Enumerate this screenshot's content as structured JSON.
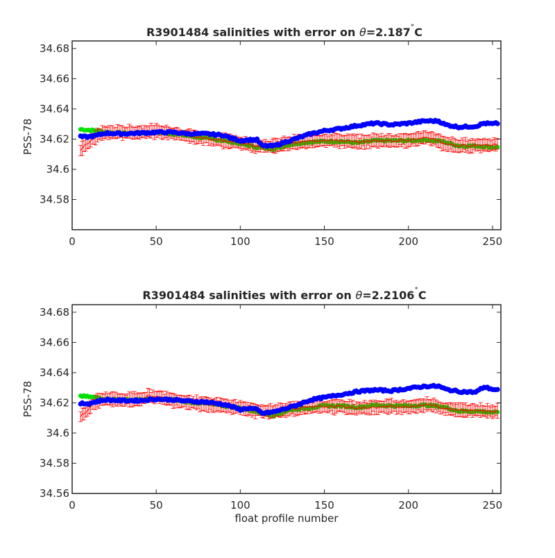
{
  "chart_data": [
    {
      "type": "scatter",
      "title": "R3901484 salinities with error on θ=2.187˚C",
      "title_parts": {
        "prefix": "R3901484 salinities with error on ",
        "symbol": "θ",
        "suffix": "=2.187",
        "degree": "˚",
        "unit": "C"
      },
      "xlabel": "",
      "ylabel": "PSS-78",
      "xlim": [
        0,
        255
      ],
      "ylim": [
        34.56,
        34.685
      ],
      "xticks": [
        0,
        50,
        100,
        150,
        200,
        250
      ],
      "yticks": [
        34.58,
        34.6,
        34.62,
        34.64,
        34.66,
        34.68
      ],
      "ytick_labels": [
        "34.58",
        "34.6",
        "34.62",
        "34.64",
        "34.66",
        "34.68"
      ],
      "grid": false,
      "knots": {
        "blue": [
          [
            5,
            34.6215
          ],
          [
            10,
            34.6215
          ],
          [
            15,
            34.6225
          ],
          [
            20,
            34.624
          ],
          [
            30,
            34.6235
          ],
          [
            40,
            34.624
          ],
          [
            50,
            34.6245
          ],
          [
            60,
            34.6245
          ],
          [
            70,
            34.6235
          ],
          [
            80,
            34.6235
          ],
          [
            90,
            34.6225
          ],
          [
            95,
            34.6205
          ],
          [
            100,
            34.619
          ],
          [
            105,
            34.6195
          ],
          [
            110,
            34.6195
          ],
          [
            113,
            34.6155
          ],
          [
            120,
            34.6155
          ],
          [
            128,
            34.6185
          ],
          [
            135,
            34.621
          ],
          [
            142,
            34.6235
          ],
          [
            150,
            34.6255
          ],
          [
            160,
            34.627
          ],
          [
            170,
            34.629
          ],
          [
            180,
            34.6305
          ],
          [
            190,
            34.6295
          ],
          [
            200,
            34.6305
          ],
          [
            210,
            34.632
          ],
          [
            218,
            34.632
          ],
          [
            222,
            34.6295
          ],
          [
            230,
            34.628
          ],
          [
            240,
            34.6285
          ],
          [
            245,
            34.6305
          ],
          [
            250,
            34.63
          ],
          [
            253,
            34.6305
          ]
        ],
        "red": [
          [
            5,
            34.6125
          ],
          [
            8,
            34.616
          ],
          [
            12,
            34.6195
          ],
          [
            15,
            34.6225
          ],
          [
            20,
            34.6245
          ],
          [
            30,
            34.6245
          ],
          [
            40,
            34.6245
          ],
          [
            45,
            34.6255
          ],
          [
            50,
            34.625
          ],
          [
            60,
            34.624
          ],
          [
            70,
            34.622
          ],
          [
            80,
            34.6205
          ],
          [
            90,
            34.619
          ],
          [
            100,
            34.6175
          ],
          [
            110,
            34.6155
          ],
          [
            120,
            34.6155
          ],
          [
            130,
            34.6175
          ],
          [
            140,
            34.6185
          ],
          [
            150,
            34.6195
          ],
          [
            160,
            34.619
          ],
          [
            170,
            34.618
          ],
          [
            180,
            34.619
          ],
          [
            190,
            34.619
          ],
          [
            200,
            34.6195
          ],
          [
            210,
            34.6205
          ],
          [
            215,
            34.6205
          ],
          [
            220,
            34.6175
          ],
          [
            230,
            34.6155
          ],
          [
            240,
            34.616
          ],
          [
            253,
            34.6165
          ]
        ],
        "green": [
          [
            5,
            34.6265
          ],
          [
            10,
            34.626
          ],
          [
            15,
            34.6255
          ],
          [
            20,
            34.6245
          ],
          [
            30,
            34.624
          ],
          [
            40,
            34.624
          ],
          [
            50,
            34.6245
          ],
          [
            60,
            34.6235
          ],
          [
            70,
            34.622
          ],
          [
            80,
            34.6205
          ],
          [
            90,
            34.619
          ],
          [
            100,
            34.617
          ],
          [
            110,
            34.6145
          ],
          [
            120,
            34.6135
          ],
          [
            130,
            34.6165
          ],
          [
            140,
            34.618
          ],
          [
            150,
            34.6185
          ],
          [
            160,
            34.6185
          ],
          [
            170,
            34.6175
          ],
          [
            180,
            34.619
          ],
          [
            190,
            34.619
          ],
          [
            200,
            34.619
          ],
          [
            210,
            34.6195
          ],
          [
            220,
            34.6185
          ],
          [
            230,
            34.6155
          ],
          [
            240,
            34.6155
          ],
          [
            253,
            34.6145
          ]
        ]
      },
      "error_halfwidth": 0.004,
      "series": [
        {
          "key": "blue",
          "color": "#0000ff",
          "kind": "markers"
        },
        {
          "key": "red",
          "color": "#ff0000",
          "kind": "errorbars"
        },
        {
          "key": "green",
          "color": "#00e000",
          "kind": "markers"
        }
      ]
    },
    {
      "type": "scatter",
      "title": "R3901484 salinities with error on θ=2.2106˚C",
      "title_parts": {
        "prefix": "R3901484 salinities with error on ",
        "symbol": "θ",
        "suffix": "=2.2106",
        "degree": "˚",
        "unit": "C"
      },
      "xlabel": "float profile number",
      "ylabel": "PSS-78",
      "xlim": [
        0,
        255
      ],
      "ylim": [
        34.56,
        34.685
      ],
      "xticks": [
        0,
        50,
        100,
        150,
        200,
        250
      ],
      "yticks": [
        34.56,
        34.58,
        34.6,
        34.62,
        34.64,
        34.66,
        34.68
      ],
      "ytick_labels": [
        "34.56",
        "34.58",
        "34.6",
        "34.62",
        "34.64",
        "34.66",
        "34.68"
      ],
      "grid": false,
      "knots": {
        "blue": [
          [
            5,
            34.6195
          ],
          [
            10,
            34.6195
          ],
          [
            15,
            34.621
          ],
          [
            20,
            34.622
          ],
          [
            30,
            34.6215
          ],
          [
            40,
            34.6215
          ],
          [
            50,
            34.6225
          ],
          [
            60,
            34.622
          ],
          [
            70,
            34.621
          ],
          [
            80,
            34.6205
          ],
          [
            90,
            34.619
          ],
          [
            95,
            34.6175
          ],
          [
            100,
            34.6155
          ],
          [
            105,
            34.6165
          ],
          [
            110,
            34.6155
          ],
          [
            113,
            34.613
          ],
          [
            120,
            34.614
          ],
          [
            128,
            34.6165
          ],
          [
            135,
            34.619
          ],
          [
            142,
            34.622
          ],
          [
            150,
            34.6235
          ],
          [
            160,
            34.6255
          ],
          [
            170,
            34.6275
          ],
          [
            180,
            34.6285
          ],
          [
            190,
            34.628
          ],
          [
            200,
            34.6295
          ],
          [
            210,
            34.631
          ],
          [
            218,
            34.631
          ],
          [
            222,
            34.629
          ],
          [
            230,
            34.6275
          ],
          [
            240,
            34.627
          ],
          [
            245,
            34.6305
          ],
          [
            250,
            34.629
          ],
          [
            253,
            34.6285
          ]
        ],
        "red": [
          [
            5,
            34.611
          ],
          [
            8,
            34.6135
          ],
          [
            12,
            34.6185
          ],
          [
            15,
            34.6215
          ],
          [
            20,
            34.623
          ],
          [
            30,
            34.622
          ],
          [
            40,
            34.6225
          ],
          [
            45,
            34.6245
          ],
          [
            50,
            34.624
          ],
          [
            60,
            34.622
          ],
          [
            70,
            34.6205
          ],
          [
            80,
            34.619
          ],
          [
            90,
            34.618
          ],
          [
            100,
            34.617
          ],
          [
            110,
            34.6145
          ],
          [
            120,
            34.6145
          ],
          [
            130,
            34.616
          ],
          [
            140,
            34.617
          ],
          [
            150,
            34.6175
          ],
          [
            160,
            34.6175
          ],
          [
            170,
            34.6165
          ],
          [
            180,
            34.617
          ],
          [
            190,
            34.6175
          ],
          [
            200,
            34.6175
          ],
          [
            210,
            34.6185
          ],
          [
            215,
            34.619
          ],
          [
            220,
            34.6165
          ],
          [
            230,
            34.615
          ],
          [
            240,
            34.615
          ],
          [
            253,
            34.6145
          ]
        ],
        "green": [
          [
            5,
            34.6245
          ],
          [
            10,
            34.624
          ],
          [
            15,
            34.6235
          ],
          [
            20,
            34.6225
          ],
          [
            30,
            34.622
          ],
          [
            40,
            34.622
          ],
          [
            50,
            34.6225
          ],
          [
            60,
            34.622
          ],
          [
            70,
            34.6205
          ],
          [
            80,
            34.6195
          ],
          [
            90,
            34.618
          ],
          [
            100,
            34.6165
          ],
          [
            110,
            34.614
          ],
          [
            120,
            34.6115
          ],
          [
            130,
            34.6155
          ],
          [
            140,
            34.6165
          ],
          [
            150,
            34.618
          ],
          [
            160,
            34.618
          ],
          [
            170,
            34.617
          ],
          [
            180,
            34.6185
          ],
          [
            190,
            34.618
          ],
          [
            200,
            34.618
          ],
          [
            210,
            34.6185
          ],
          [
            220,
            34.6175
          ],
          [
            230,
            34.6145
          ],
          [
            240,
            34.6145
          ],
          [
            253,
            34.6135
          ]
        ]
      },
      "error_halfwidth": 0.004,
      "series": [
        {
          "key": "blue",
          "color": "#0000ff",
          "kind": "markers"
        },
        {
          "key": "red",
          "color": "#ff0000",
          "kind": "errorbars"
        },
        {
          "key": "green",
          "color": "#00e000",
          "kind": "markers"
        }
      ]
    }
  ]
}
